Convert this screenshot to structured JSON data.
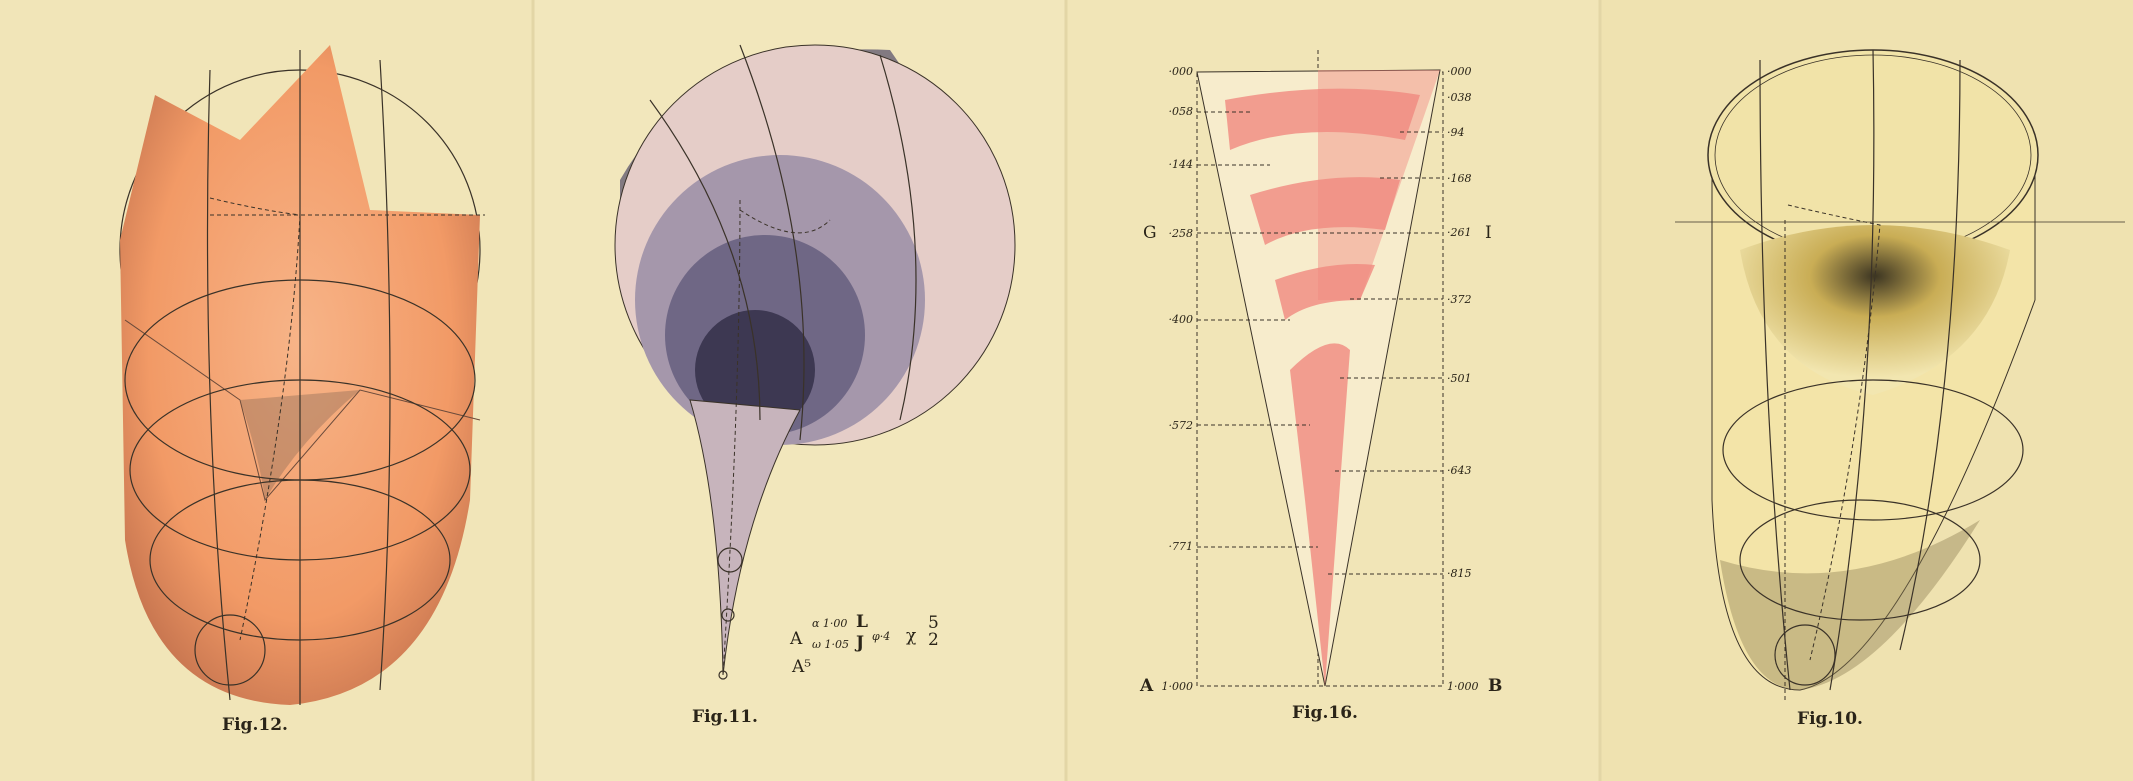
{
  "figures": [
    {
      "caption": "Fig.12.",
      "color": "#f29a66"
    },
    {
      "caption": "Fig.11.",
      "color": "#c9b5c0",
      "formula": {
        "main": "A",
        "sup": "α 1·00",
        "sub": "ω 1·05",
        "l_top": "L",
        "l_bottom": "J",
        "phi": "φ·4",
        "chi": "χ",
        "frac_top": "5",
        "frac_bottom": "2",
        "second_line": "A⁵"
      }
    },
    {
      "caption": "Fig.16.",
      "color": "#f08a80",
      "left_labels": [
        "·000",
        "·058",
        "·144",
        "·258",
        "·400",
        "·572",
        "·771",
        "1·000"
      ],
      "right_labels": [
        "·000",
        "·038",
        "·94",
        "·168",
        "·261",
        "·372",
        "·501",
        "·643",
        "·815",
        "1·000"
      ],
      "corner_left_mid": "G",
      "corner_right_mid": "I",
      "corner_left_bottom": "A",
      "corner_right_bottom": "B"
    },
    {
      "caption": "Fig.10.",
      "color": "#ecd27a"
    }
  ]
}
